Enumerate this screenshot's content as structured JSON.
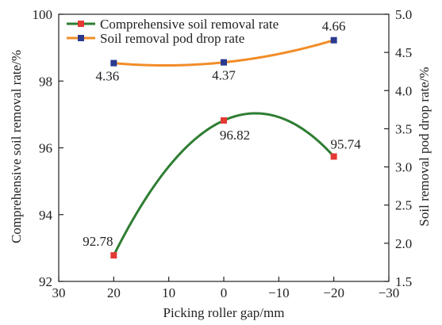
{
  "chart_data": {
    "type": "line",
    "x": [
      20,
      0,
      -20
    ],
    "xlabel": "Picking roller gap/mm",
    "xlim": [
      30,
      -30
    ],
    "xticks": [
      30,
      20,
      10,
      0,
      -10,
      -20,
      -30
    ],
    "xtick_labels": [
      "30",
      "20",
      "10",
      "0",
      "−10",
      "−20",
      "−30"
    ],
    "ylabel_left": "Comprehensive soil removal rate/%",
    "ylim_left": [
      92,
      100
    ],
    "yticks_left": [
      92,
      94,
      96,
      98,
      100
    ],
    "ytick_labels_left": [
      "92",
      "94",
      "96",
      "98",
      "100"
    ],
    "ylabel_right": "Soil removal pod drop rate/%",
    "ylim_right": [
      1.5,
      5.0
    ],
    "yticks_right": [
      1.5,
      2.0,
      2.5,
      3.0,
      3.5,
      4.0,
      4.5,
      5.0
    ],
    "ytick_labels_right": [
      "1.5",
      "2.0",
      "2.5",
      "3.0",
      "3.5",
      "4.0",
      "4.5",
      "5.0"
    ],
    "grid": false,
    "legend_position": "top-left",
    "series": [
      {
        "name": "Comprehensive soil removal rate",
        "axis": "left",
        "values": [
          92.78,
          96.82,
          95.74
        ],
        "labels": [
          "92.78",
          "96.82",
          "95.74"
        ],
        "line_color": "#2e7d32",
        "marker_color": "#e53935",
        "marker": "square",
        "curve_peak": [
          -4,
          96.97
        ]
      },
      {
        "name": "Soil removal pod drop rate",
        "axis": "right",
        "values": [
          4.36,
          4.37,
          4.66
        ],
        "labels": [
          "4.36",
          "4.37",
          "4.66"
        ],
        "line_color": "#f28c28",
        "marker_color": "#2b3a8f",
        "marker": "square",
        "curve_min": [
          9,
          4.33
        ]
      }
    ]
  }
}
